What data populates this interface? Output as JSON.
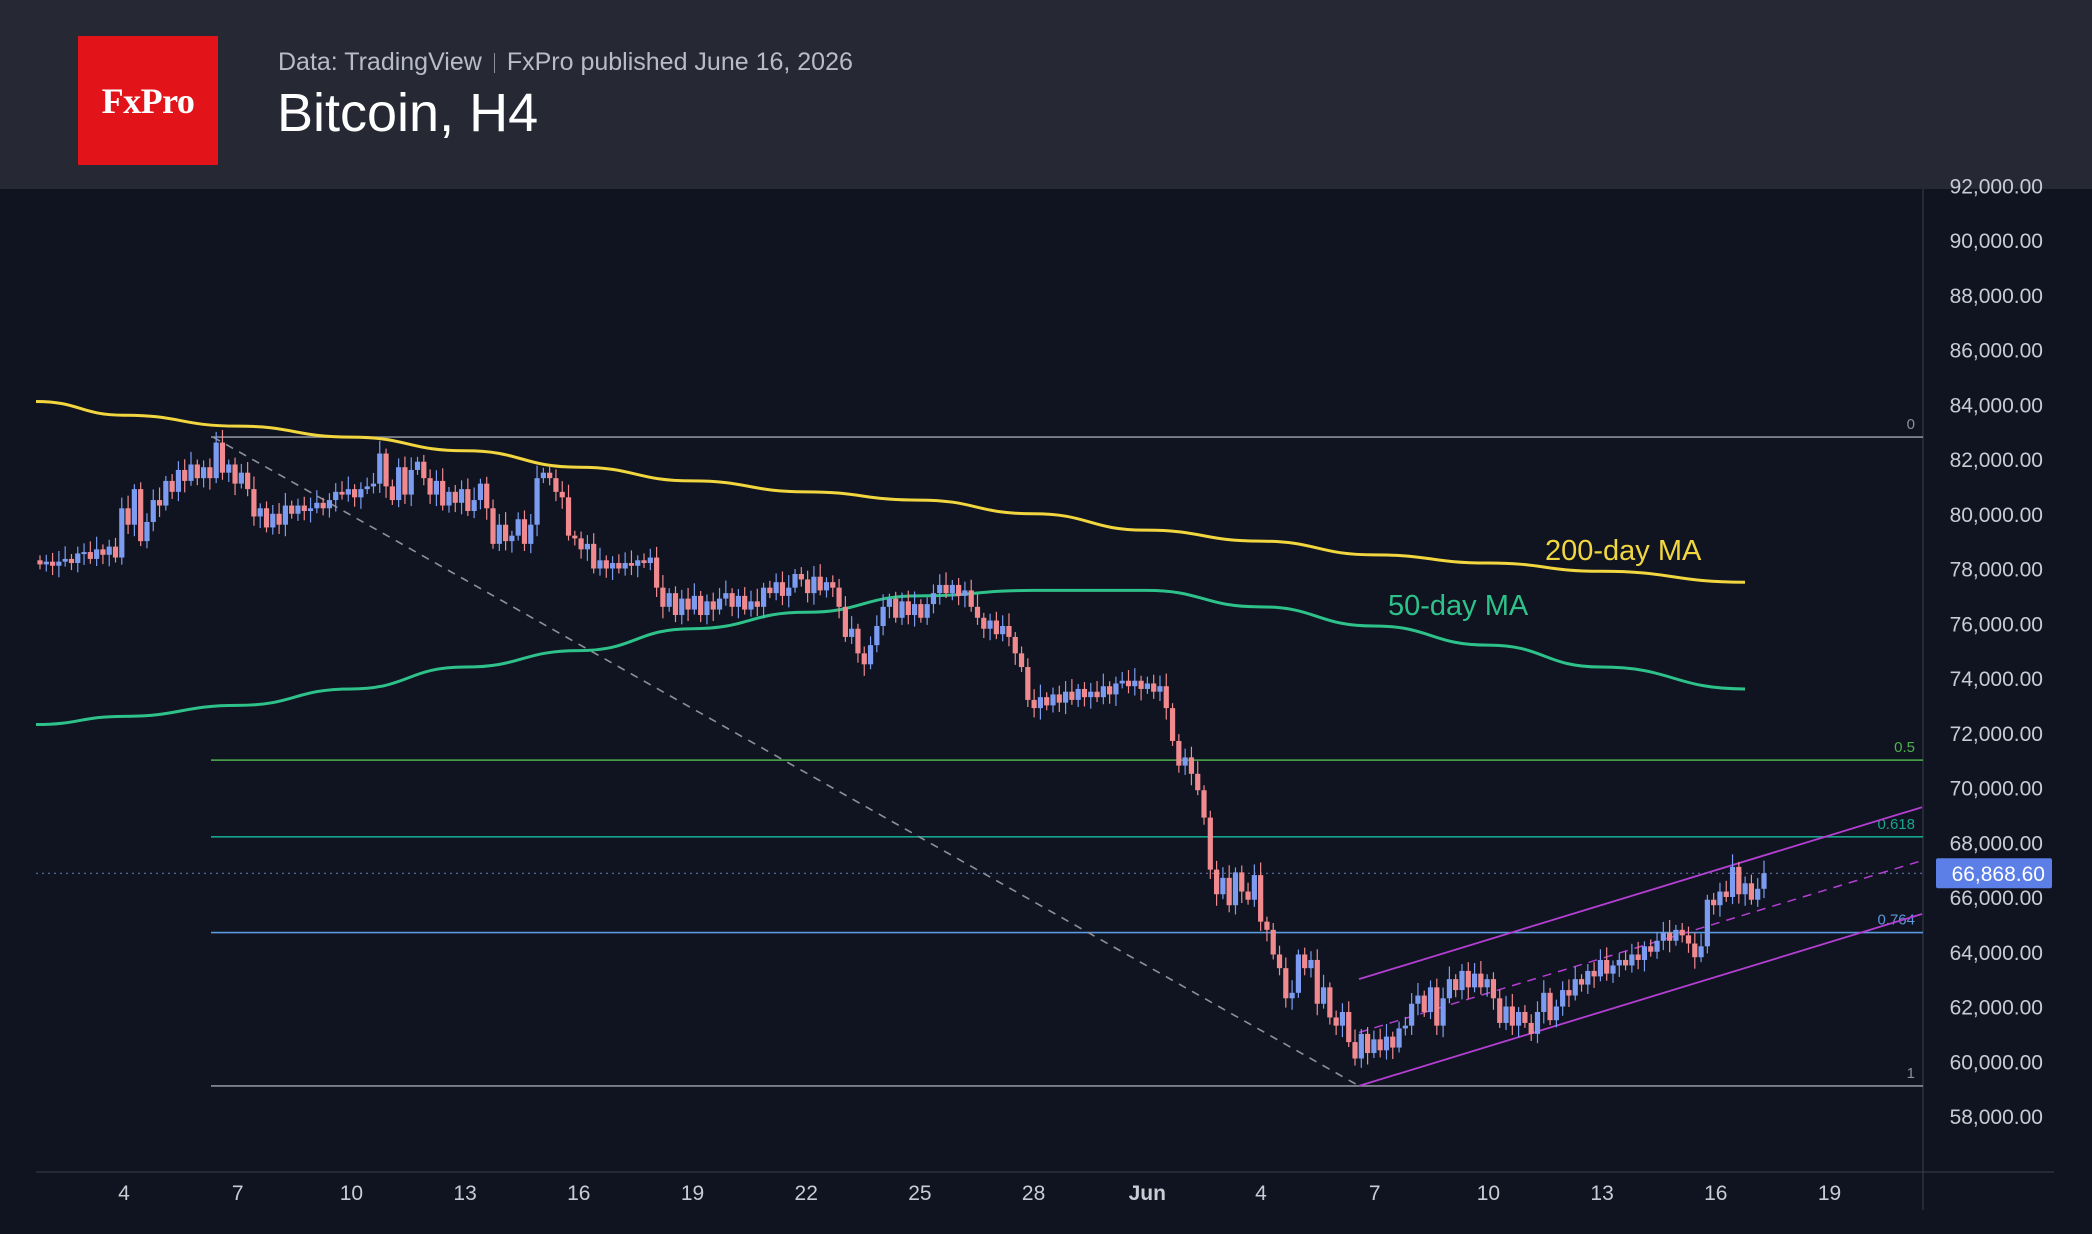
{
  "header": {
    "logo": "FxPro",
    "source": "Data: TradingView",
    "published": "FxPro published June 16, 2026",
    "title": "Bitcoin, H4"
  },
  "chart_data": {
    "type": "candlestick",
    "title": "Bitcoin, H4",
    "ylim": [
      56000,
      93000
    ],
    "y_ticks": [
      58000,
      60000,
      62000,
      64000,
      66000,
      68000,
      70000,
      72000,
      74000,
      76000,
      78000,
      80000,
      82000,
      84000,
      86000,
      88000,
      90000,
      92000
    ],
    "x_ticks": [
      "4",
      "7",
      "10",
      "13",
      "16",
      "19",
      "22",
      "25",
      "28",
      "Jun",
      "4",
      "7",
      "10",
      "13",
      "16",
      "19"
    ],
    "last_price": 66868.6,
    "last_price_label": "66,868.60",
    "colors": {
      "up": "#7b9cf0",
      "down": "#f08a8f",
      "ma200": "#f2d640",
      "ma50": "#2ec28a",
      "channel": "#b43fd2"
    },
    "fib_levels": [
      {
        "label": "0",
        "price": 82800,
        "color": "#8c909a"
      },
      {
        "label": "0.5",
        "price": 71000,
        "color": "#4fb14d"
      },
      {
        "label": "0.618",
        "price": 68200,
        "color": "#18a58f"
      },
      {
        "label": "0.764",
        "price": 64700,
        "color": "#5b98dc"
      },
      {
        "label": "1",
        "price": 59100,
        "color": "#8c909a"
      }
    ],
    "series": [
      {
        "name": "200-day MA",
        "color": "#f2d640",
        "points": [
          [
            "1",
            84100
          ],
          [
            "4",
            83600
          ],
          [
            "7",
            83200
          ],
          [
            "10",
            82800
          ],
          [
            "13",
            82300
          ],
          [
            "16",
            81700
          ],
          [
            "19",
            81200
          ],
          [
            "22",
            80800
          ],
          [
            "25",
            80500
          ],
          [
            "28",
            80000
          ],
          [
            "Jun",
            79400
          ],
          [
            "4",
            79000
          ],
          [
            "7",
            78500
          ],
          [
            "10",
            78200
          ],
          [
            "13",
            77900
          ],
          [
            "16",
            77500
          ]
        ]
      },
      {
        "name": "50-day MA",
        "color": "#2ec28a",
        "points": [
          [
            "1",
            72300
          ],
          [
            "4",
            72600
          ],
          [
            "7",
            73000
          ],
          [
            "10",
            73600
          ],
          [
            "13",
            74400
          ],
          [
            "16",
            75000
          ],
          [
            "19",
            75800
          ],
          [
            "22",
            76400
          ],
          [
            "25",
            77000
          ],
          [
            "28",
            77200
          ],
          [
            "Jun",
            77200
          ],
          [
            "4",
            76600
          ],
          [
            "7",
            75900
          ],
          [
            "10",
            75200
          ],
          [
            "13",
            74400
          ],
          [
            "16",
            73600
          ]
        ]
      }
    ],
    "candles": [
      [
        78300,
        78150
      ],
      [
        78150,
        78250
      ],
      [
        78250,
        78100
      ],
      [
        78100,
        78250
      ],
      [
        78250,
        78350
      ],
      [
        78350,
        78200
      ],
      [
        78200,
        78550
      ],
      [
        78550,
        78600
      ],
      [
        78600,
        78350
      ],
      [
        78350,
        78700
      ],
      [
        78700,
        78500
      ],
      [
        78500,
        78800
      ],
      [
        78800,
        78400
      ],
      [
        78400,
        80200
      ],
      [
        80200,
        79600
      ],
      [
        79600,
        80900
      ],
      [
        80900,
        79000
      ],
      [
        79000,
        79700
      ],
      [
        79700,
        80500
      ],
      [
        80500,
        80300
      ],
      [
        80300,
        81200
      ],
      [
        81200,
        80800
      ],
      [
        80800,
        81600
      ],
      [
        81600,
        81200
      ],
      [
        81200,
        81800
      ],
      [
        81800,
        81300
      ],
      [
        81300,
        81700
      ],
      [
        81700,
        81300
      ],
      [
        81300,
        82600
      ],
      [
        82600,
        81500
      ],
      [
        81500,
        81800
      ],
      [
        81800,
        81100
      ],
      [
        81100,
        81500
      ],
      [
        81500,
        80900
      ],
      [
        80900,
        79900
      ],
      [
        79900,
        80200
      ],
      [
        80200,
        79500
      ],
      [
        79500,
        80000
      ],
      [
        80000,
        79600
      ],
      [
        79600,
        80300
      ],
      [
        80300,
        80000
      ],
      [
        80000,
        80300
      ],
      [
        80300,
        80100
      ],
      [
        80100,
        80200
      ],
      [
        80200,
        80400
      ],
      [
        80400,
        80200
      ],
      [
        80200,
        80500
      ],
      [
        80500,
        80800
      ],
      [
        80800,
        80700
      ],
      [
        80700,
        80900
      ],
      [
        80900,
        80600
      ],
      [
        80600,
        80900
      ],
      [
        80900,
        81000
      ],
      [
        81000,
        81100
      ],
      [
        81100,
        82200
      ],
      [
        82200,
        81000
      ],
      [
        81000,
        80500
      ],
      [
        80500,
        81700
      ],
      [
        81700,
        80700
      ],
      [
        80700,
        81600
      ],
      [
        81600,
        81900
      ],
      [
        81900,
        81300
      ],
      [
        81300,
        80700
      ],
      [
        80700,
        81200
      ],
      [
        81200,
        80300
      ],
      [
        80300,
        80800
      ],
      [
        80800,
        80400
      ],
      [
        80400,
        80900
      ],
      [
        80900,
        80100
      ],
      [
        80100,
        80500
      ],
      [
        80500,
        81100
      ],
      [
        81100,
        80200
      ],
      [
        80200,
        78900
      ],
      [
        78900,
        79600
      ],
      [
        79600,
        79000
      ],
      [
        79000,
        79200
      ],
      [
        79200,
        79800
      ],
      [
        79800,
        78900
      ],
      [
        78900,
        79600
      ],
      [
        79600,
        81300
      ],
      [
        81300,
        81500
      ],
      [
        81500,
        81300
      ],
      [
        81300,
        80800
      ],
      [
        80800,
        80600
      ],
      [
        80600,
        79200
      ],
      [
        79200,
        79100
      ],
      [
        79100,
        78700
      ],
      [
        78700,
        78900
      ],
      [
        78900,
        78000
      ],
      [
        78000,
        78300
      ],
      [
        78300,
        78000
      ],
      [
        78000,
        78200
      ],
      [
        78200,
        78000
      ],
      [
        78000,
        78200
      ],
      [
        78200,
        78100
      ],
      [
        78100,
        78300
      ],
      [
        78300,
        78200
      ],
      [
        78200,
        78400
      ],
      [
        78400,
        77300
      ],
      [
        77300,
        76600
      ],
      [
        76600,
        77100
      ],
      [
        77100,
        76300
      ],
      [
        76300,
        76900
      ],
      [
        76900,
        76500
      ],
      [
        76500,
        77000
      ],
      [
        77000,
        76300
      ],
      [
        76300,
        76800
      ],
      [
        76800,
        76500
      ],
      [
        76500,
        76900
      ],
      [
        76900,
        77100
      ],
      [
        77100,
        76600
      ],
      [
        76600,
        77000
      ],
      [
        77000,
        76500
      ],
      [
        76500,
        76800
      ],
      [
        76800,
        76600
      ],
      [
        76600,
        77300
      ],
      [
        77300,
        77100
      ],
      [
        77100,
        77500
      ],
      [
        77500,
        77000
      ],
      [
        77000,
        77300
      ],
      [
        77300,
        77800
      ],
      [
        77800,
        77600
      ],
      [
        77600,
        77100
      ],
      [
        77100,
        77700
      ],
      [
        77700,
        77200
      ],
      [
        77200,
        77500
      ],
      [
        77500,
        77300
      ],
      [
        77300,
        76600
      ],
      [
        76600,
        75500
      ],
      [
        75500,
        75800
      ],
      [
        75800,
        74900
      ],
      [
        74900,
        74500
      ],
      [
        74500,
        75200
      ],
      [
        75200,
        75900
      ],
      [
        75900,
        76600
      ],
      [
        76600,
        76900
      ],
      [
        76900,
        76200
      ],
      [
        76200,
        76800
      ],
      [
        76800,
        76300
      ],
      [
        76300,
        76700
      ],
      [
        76700,
        76200
      ],
      [
        76200,
        76700
      ],
      [
        76700,
        77100
      ],
      [
        77100,
        77400
      ],
      [
        77400,
        77100
      ],
      [
        77100,
        77400
      ],
      [
        77400,
        77000
      ],
      [
        77000,
        77200
      ],
      [
        77200,
        76600
      ],
      [
        76600,
        76200
      ],
      [
        76200,
        75800
      ],
      [
        75800,
        76100
      ],
      [
        76100,
        75600
      ],
      [
        75600,
        75900
      ],
      [
        75900,
        75500
      ],
      [
        75500,
        74900
      ],
      [
        74900,
        74400
      ],
      [
        74400,
        73200
      ],
      [
        73200,
        72900
      ],
      [
        72900,
        73300
      ],
      [
        73300,
        73000
      ],
      [
        73000,
        73400
      ],
      [
        73400,
        73100
      ],
      [
        73100,
        73500
      ],
      [
        73500,
        73200
      ],
      [
        73200,
        73600
      ],
      [
        73600,
        73300
      ],
      [
        73300,
        73500
      ],
      [
        73500,
        73300
      ],
      [
        73300,
        73700
      ],
      [
        73700,
        73400
      ],
      [
        73400,
        73800
      ],
      [
        73800,
        73900
      ],
      [
        73900,
        73700
      ],
      [
        73700,
        73900
      ],
      [
        73900,
        73600
      ],
      [
        73600,
        73800
      ],
      [
        73800,
        73500
      ],
      [
        73500,
        73700
      ],
      [
        73700,
        72900
      ],
      [
        72900,
        71700
      ],
      [
        71700,
        70800
      ],
      [
        70800,
        71100
      ],
      [
        71100,
        70500
      ],
      [
        70500,
        69900
      ],
      [
        69900,
        68900
      ],
      [
        68900,
        67000
      ],
      [
        67000,
        66100
      ],
      [
        66100,
        66700
      ],
      [
        66700,
        65700
      ],
      [
        65700,
        66900
      ],
      [
        66900,
        66200
      ],
      [
        66200,
        65900
      ],
      [
        65900,
        66800
      ],
      [
        66800,
        65100
      ],
      [
        65100,
        64800
      ],
      [
        64800,
        63900
      ],
      [
        63900,
        63400
      ],
      [
        63400,
        62300
      ],
      [
        62300,
        62500
      ],
      [
        62500,
        63900
      ],
      [
        63900,
        63400
      ],
      [
        63400,
        63700
      ],
      [
        63700,
        62100
      ],
      [
        62100,
        62700
      ],
      [
        62700,
        61600
      ],
      [
        61600,
        61300
      ],
      [
        61300,
        61800
      ],
      [
        61800,
        60700
      ],
      [
        60700,
        60100
      ],
      [
        60100,
        61000
      ],
      [
        61000,
        60300
      ],
      [
        60300,
        60800
      ],
      [
        60800,
        60400
      ],
      [
        60400,
        60900
      ],
      [
        60900,
        60500
      ],
      [
        60500,
        61200
      ],
      [
        61200,
        61300
      ],
      [
        61300,
        62100
      ],
      [
        62100,
        62400
      ],
      [
        62400,
        61800
      ],
      [
        61800,
        62700
      ],
      [
        62700,
        61300
      ],
      [
        61300,
        62300
      ],
      [
        62300,
        63000
      ],
      [
        63000,
        62600
      ],
      [
        62600,
        63300
      ],
      [
        63300,
        62700
      ],
      [
        62700,
        63200
      ],
      [
        63200,
        62700
      ],
      [
        62700,
        63000
      ],
      [
        63000,
        62300
      ],
      [
        62300,
        61400
      ],
      [
        61400,
        62000
      ],
      [
        62000,
        61300
      ],
      [
        61300,
        61800
      ],
      [
        61800,
        61400
      ],
      [
        61400,
        61000
      ],
      [
        61000,
        61800
      ],
      [
        61800,
        62500
      ],
      [
        62500,
        61500
      ],
      [
        61500,
        62000
      ],
      [
        62000,
        62600
      ],
      [
        62600,
        62400
      ],
      [
        62400,
        63000
      ],
      [
        63000,
        62800
      ],
      [
        62800,
        63300
      ],
      [
        63300,
        63100
      ],
      [
        63100,
        63700
      ],
      [
        63700,
        63200
      ],
      [
        63200,
        63500
      ],
      [
        63500,
        63700
      ],
      [
        63700,
        63500
      ],
      [
        63500,
        63900
      ],
      [
        63900,
        63700
      ],
      [
        63700,
        64200
      ],
      [
        64200,
        64000
      ],
      [
        64000,
        64400
      ],
      [
        64400,
        64700
      ],
      [
        64700,
        64400
      ],
      [
        64400,
        64800
      ],
      [
        64800,
        64600
      ],
      [
        64600,
        64300
      ],
      [
        64300,
        63800
      ],
      [
        63800,
        64200
      ],
      [
        64200,
        65900
      ],
      [
        65900,
        65700
      ],
      [
        65700,
        66200
      ],
      [
        66200,
        66000
      ],
      [
        66000,
        67100
      ],
      [
        67100,
        66100
      ],
      [
        66100,
        66500
      ],
      [
        66500,
        65900
      ],
      [
        65900,
        66300
      ],
      [
        66300,
        66869
      ]
    ],
    "annotations": [
      "200-day MA",
      "50-day MA"
    ]
  }
}
